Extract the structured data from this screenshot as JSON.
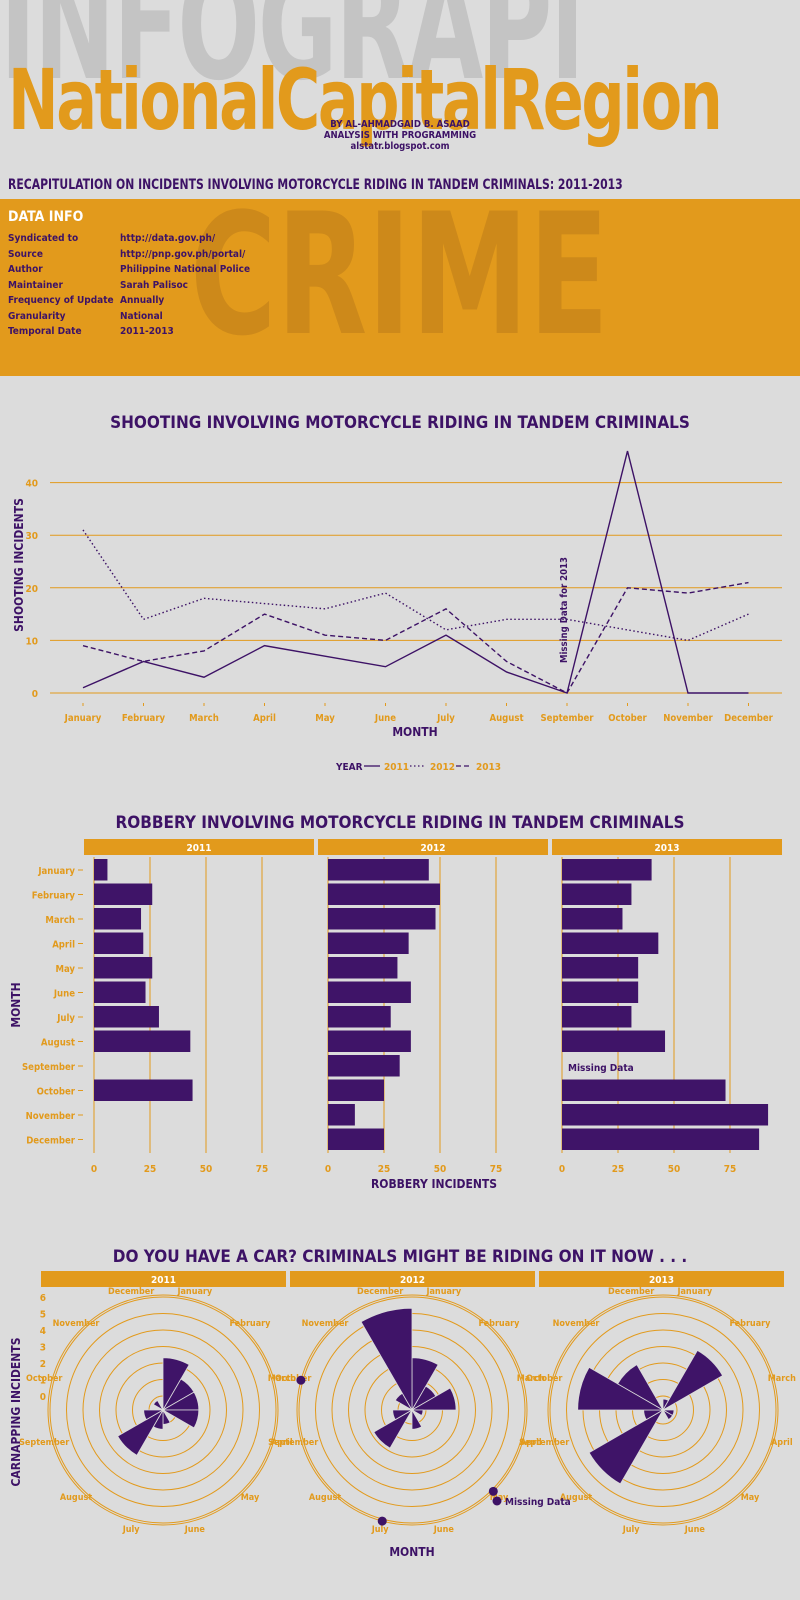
{
  "header": {
    "background_word": "INFOGRAPHIC",
    "title": "NationalCapitalRegion",
    "byline": [
      "BY AL-AHMADGAID B. ASAAD",
      "ANALYSIS WITH PROGRAMMING",
      "alstatr.blogspot.com"
    ],
    "recap": "RECAPITULATION ON INCIDENTS INVOLVING MOTORCYCLE RIDING IN TANDEM CRIMINALS: 2011-2013"
  },
  "data_info": {
    "heading": "DATA INFO",
    "background_word": "CRIME",
    "rows": [
      {
        "key": "Syndicated to",
        "value": "http://data.gov.ph/"
      },
      {
        "key": "Source",
        "value": "http://pnp.gov.ph/portal/"
      },
      {
        "key": "Author",
        "value": "Philippine National Police"
      },
      {
        "key": "Maintainer",
        "value": "Sarah Palisoc"
      },
      {
        "key": "Frequency of Update",
        "value": "Annually"
      },
      {
        "key": "Granularity",
        "value": "National"
      },
      {
        "key": "Temporal Date",
        "value": "2011-2013"
      }
    ]
  },
  "colors": {
    "accent": "#e29a1c",
    "purple": "#3d1266",
    "background": "#dcdcdc"
  },
  "chart_data": [
    {
      "type": "line",
      "title": "SHOOTING INVOLVING MOTORCYCLE RIDING IN TANDEM CRIMINALS",
      "xlabel": "MONTH",
      "ylabel": "SHOOTING INCIDENTS",
      "categories": [
        "January",
        "February",
        "March",
        "April",
        "May",
        "June",
        "July",
        "August",
        "September",
        "October",
        "November",
        "December"
      ],
      "ylim": [
        0,
        46
      ],
      "yticks": [
        0,
        10,
        20,
        30,
        40
      ],
      "grid": true,
      "legend_title": "YEAR",
      "legend_placement": "bottom",
      "annotation": "Missing Data for 2013",
      "series": [
        {
          "name": "2011",
          "style": "solid",
          "values": [
            1,
            6,
            3,
            9,
            7,
            5,
            11,
            4,
            0,
            46,
            0,
            0
          ]
        },
        {
          "name": "2012",
          "style": "dotted",
          "values": [
            31,
            14,
            18,
            17,
            16,
            19,
            12,
            14,
            14,
            12,
            10,
            15
          ]
        },
        {
          "name": "2013",
          "style": "dashed",
          "values": [
            9,
            6,
            8,
            15,
            11,
            10,
            16,
            6,
            0,
            20,
            19,
            21
          ]
        }
      ]
    },
    {
      "type": "bar",
      "orientation": "horizontal",
      "title": "ROBBERY INVOLVING MOTORCYCLE RIDING IN TANDEM CRIMINALS",
      "xlabel": "ROBBERY INCIDENTS",
      "ylabel": "MONTH",
      "categories": [
        "January",
        "February",
        "March",
        "April",
        "May",
        "June",
        "July",
        "August",
        "September",
        "October",
        "November",
        "December"
      ],
      "xlim": [
        0,
        100
      ],
      "xticks": [
        0,
        25,
        50,
        75
      ],
      "annotation": "Missing Data",
      "panels": [
        {
          "name": "2011",
          "values": [
            6,
            26,
            21,
            22,
            26,
            23,
            29,
            43,
            0,
            44,
            null,
            null
          ]
        },
        {
          "name": "2012",
          "values": [
            45,
            50,
            48,
            36,
            31,
            37,
            28,
            37,
            32,
            25,
            12,
            25
          ]
        },
        {
          "name": "2013",
          "values": [
            40,
            31,
            27,
            43,
            34,
            34,
            31,
            46,
            null,
            73,
            92,
            88
          ]
        }
      ]
    },
    {
      "type": "polar-bar",
      "title": "DO YOU HAVE A CAR? CRIMINALS MIGHT BE RIDING ON IT NOW . . .",
      "xlabel": "MONTH",
      "ylabel": "CARNAPPING INCIDENTS",
      "yticks": [
        0,
        1,
        2,
        3,
        4,
        5,
        6
      ],
      "categories": [
        "January",
        "February",
        "March",
        "April",
        "May",
        "June",
        "July",
        "August",
        "September",
        "October",
        "November",
        "December"
      ],
      "legend_entry": "Missing Data",
      "panels": [
        {
          "name": "2011",
          "values": [
            3,
            2,
            2,
            2,
            0,
            0.7,
            1,
            3,
            1,
            0,
            0.5,
            0
          ],
          "missing": []
        },
        {
          "name": "2012",
          "values": [
            3,
            1.5,
            2.5,
            0.5,
            null,
            1,
            null,
            2.5,
            1,
            null,
            1,
            6
          ],
          "missing": [
            "May",
            "July",
            "October"
          ]
        },
        {
          "name": "2013",
          "values": [
            0.5,
            4,
            0,
            0.5,
            0.5,
            0,
            0,
            5,
            1,
            5,
            3,
            0
          ],
          "missing": []
        }
      ]
    }
  ]
}
